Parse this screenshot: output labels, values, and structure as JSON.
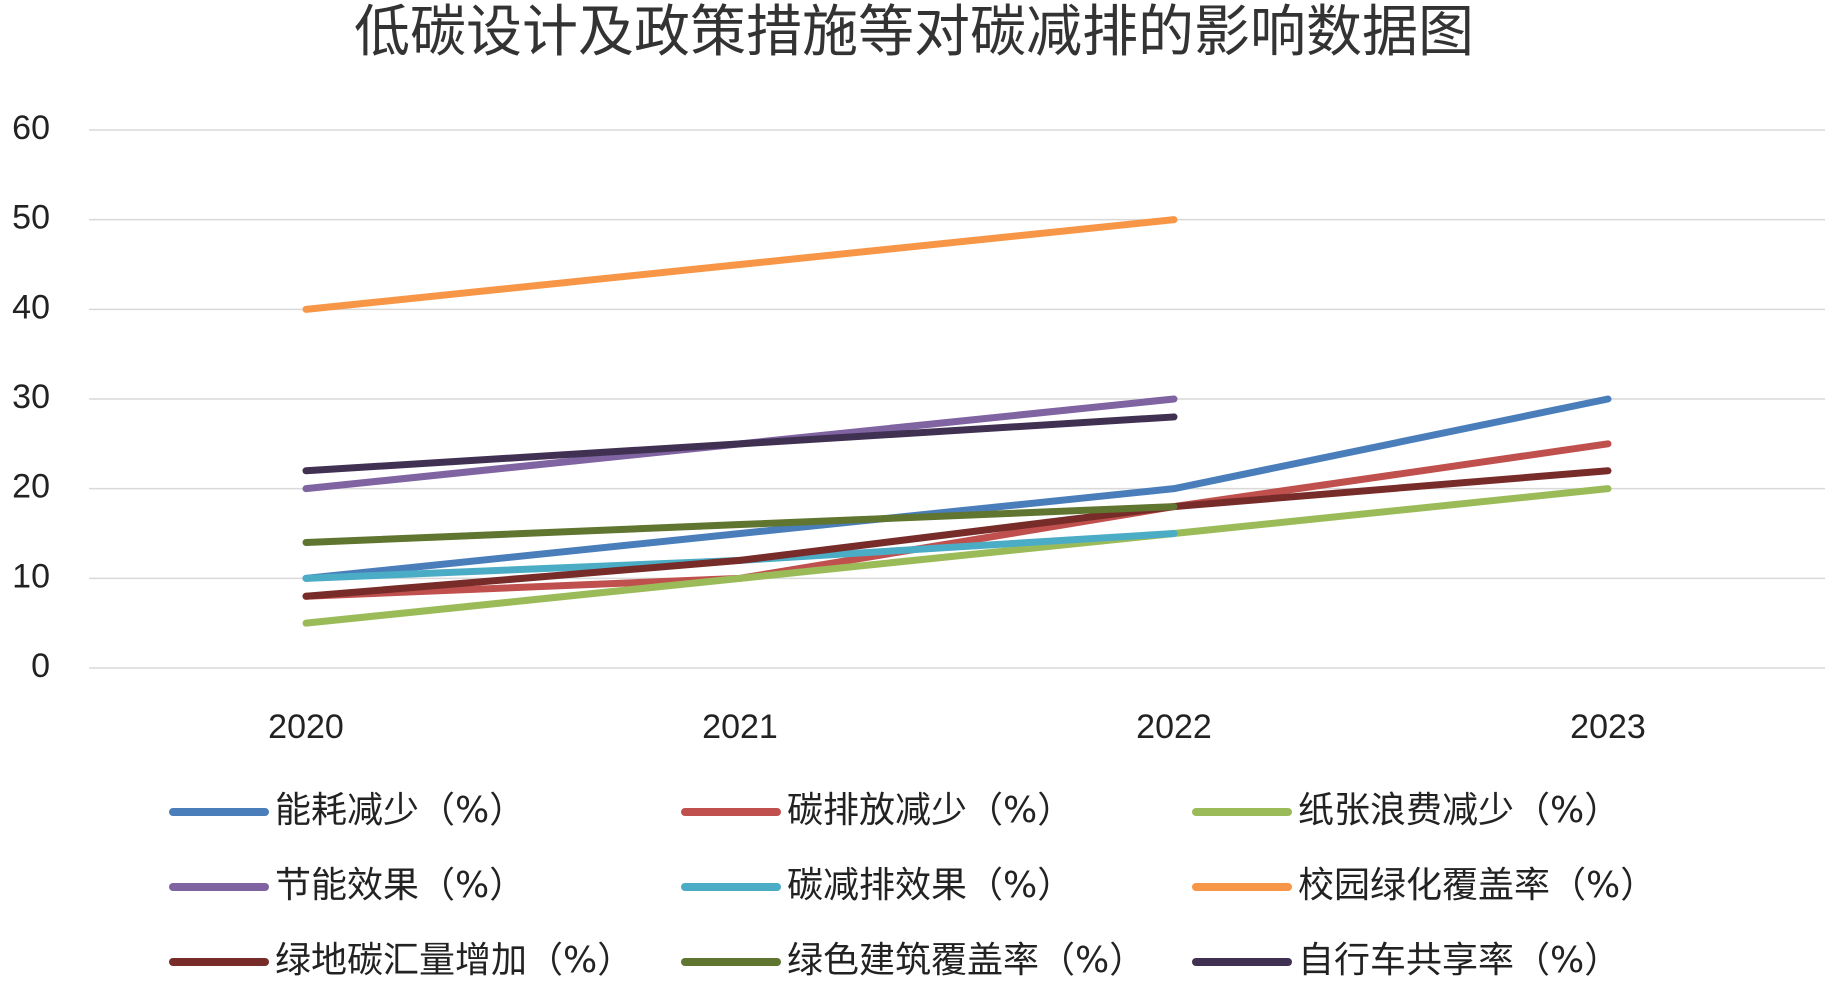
{
  "chart_data": {
    "type": "line",
    "title": "低碳设计及政策措施等对碳减排的影响数据图",
    "categories": [
      "2020",
      "2021",
      "2022",
      "2023"
    ],
    "series": [
      {
        "name": "能耗减少（%）",
        "color": "#4a7ebb",
        "values": [
          10,
          15,
          20,
          30
        ]
      },
      {
        "name": "碳排放减少（%）",
        "color": "#c0504d",
        "values": [
          8,
          10,
          18,
          25
        ]
      },
      {
        "name": "纸张浪费减少（%）",
        "color": "#9bbb59",
        "values": [
          5,
          10,
          15,
          20
        ]
      },
      {
        "name": "节能效果（%）",
        "color": "#8064a2",
        "values": [
          20,
          25,
          30,
          null
        ]
      },
      {
        "name": "碳减排效果（%）",
        "color": "#4bacc6",
        "values": [
          10,
          12,
          15,
          null
        ]
      },
      {
        "name": "校园绿化覆盖率（%）",
        "color": "#f79646",
        "values": [
          40,
          45,
          50,
          null
        ]
      },
      {
        "name": "绿地碳汇量增加（%）",
        "color": "#772c2a",
        "values": [
          8,
          12,
          18,
          22
        ]
      },
      {
        "name": "绿色建筑覆盖率（%）",
        "color": "#5f7530",
        "values": [
          14,
          16,
          18,
          null
        ]
      },
      {
        "name": "自行车共享率（%）",
        "color": "#403152",
        "values": [
          22,
          25,
          28,
          null
        ]
      }
    ],
    "ylim": [
      0,
      60
    ],
    "yticks": [
      0,
      10,
      20,
      30,
      40,
      50,
      60
    ],
    "grid": true,
    "legend": "bottom"
  }
}
